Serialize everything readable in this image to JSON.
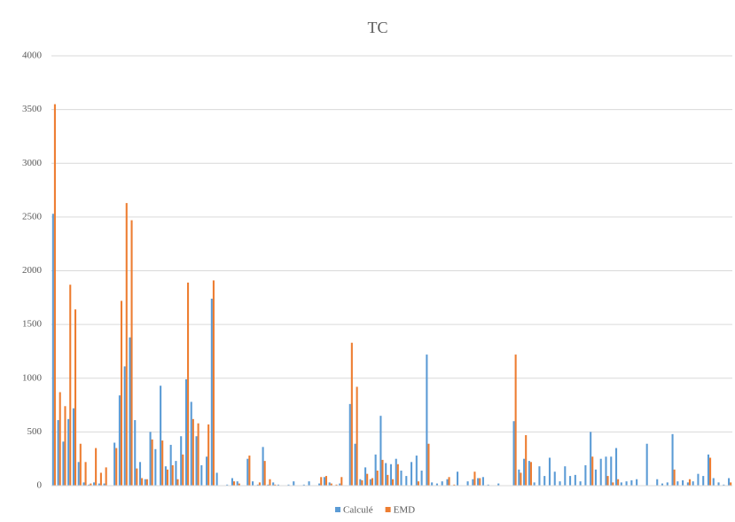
{
  "chart_data": {
    "type": "bar",
    "title": "TC",
    "categories": [
      null,
      null,
      null,
      null,
      null,
      null,
      null,
      null,
      null,
      null,
      null,
      null,
      null,
      null,
      null,
      null,
      null,
      null,
      null,
      null,
      null,
      null,
      null,
      null,
      null,
      null,
      null,
      null,
      null,
      null,
      null,
      null,
      null,
      null,
      null,
      null,
      null,
      null,
      null,
      null,
      null,
      null,
      null,
      null,
      null,
      null,
      null,
      null,
      null,
      null,
      null,
      null,
      null,
      null,
      null,
      null,
      null,
      null,
      null,
      null,
      null,
      null,
      null,
      null,
      null,
      null,
      null,
      null,
      null,
      null,
      null,
      null,
      null,
      null,
      null,
      null,
      null,
      null,
      null,
      null,
      null,
      null,
      null,
      null,
      null,
      null,
      null,
      null,
      null,
      null,
      null,
      null,
      null,
      null,
      null,
      null,
      null,
      null,
      null,
      null,
      null,
      null,
      null,
      null,
      null,
      null,
      null,
      null,
      null,
      null,
      null,
      null,
      null,
      null,
      null,
      null,
      null,
      null,
      null,
      null,
      null,
      null,
      null,
      null,
      null,
      null,
      null,
      null,
      null,
      null,
      null,
      null,
      null
    ],
    "series": [
      {
        "name": "Calculé",
        "color": "#5b9bd5",
        "values": [
          2530,
          610,
          410,
          620,
          720,
          220,
          30,
          10,
          30,
          20,
          20,
          0,
          400,
          840,
          1110,
          1380,
          610,
          220,
          60,
          500,
          340,
          930,
          180,
          380,
          230,
          460,
          990,
          780,
          460,
          190,
          270,
          1740,
          120,
          0,
          10,
          70,
          40,
          0,
          250,
          40,
          10,
          360,
          10,
          30,
          10,
          0,
          10,
          40,
          0,
          10,
          40,
          0,
          20,
          80,
          30,
          0,
          20,
          0,
          760,
          390,
          60,
          170,
          60,
          290,
          650,
          210,
          200,
          250,
          140,
          90,
          220,
          280,
          140,
          1220,
          30,
          20,
          40,
          60,
          0,
          130,
          0,
          40,
          60,
          70,
          80,
          10,
          0,
          20,
          0,
          0,
          600,
          150,
          250,
          230,
          30,
          180,
          90,
          260,
          130,
          40,
          180,
          90,
          100,
          40,
          190,
          500,
          150,
          250,
          270,
          270,
          350,
          30,
          40,
          50,
          60,
          0,
          390,
          0,
          60,
          20,
          30,
          480,
          40,
          50,
          30,
          40,
          110,
          90,
          290,
          70,
          30,
          10,
          70
        ]
      },
      {
        "name": "EMD",
        "color": "#ed7d31",
        "values": [
          3550,
          870,
          740,
          1870,
          1640,
          390,
          220,
          20,
          350,
          120,
          170,
          0,
          350,
          1720,
          2630,
          2470,
          160,
          70,
          60,
          430,
          0,
          420,
          150,
          190,
          60,
          290,
          1890,
          620,
          580,
          0,
          570,
          1910,
          0,
          0,
          0,
          40,
          20,
          0,
          280,
          0,
          30,
          230,
          60,
          10,
          0,
          0,
          0,
          0,
          0,
          0,
          0,
          0,
          80,
          90,
          20,
          10,
          80,
          0,
          1330,
          920,
          50,
          110,
          70,
          140,
          240,
          100,
          60,
          200,
          0,
          0,
          0,
          40,
          0,
          390,
          0,
          0,
          0,
          80,
          10,
          0,
          0,
          0,
          130,
          70,
          0,
          0,
          0,
          0,
          0,
          0,
          1220,
          120,
          470,
          220,
          0,
          0,
          0,
          0,
          0,
          0,
          0,
          0,
          0,
          0,
          0,
          270,
          0,
          0,
          90,
          30,
          60,
          0,
          0,
          0,
          0,
          0,
          0,
          0,
          0,
          0,
          0,
          150,
          0,
          0,
          60,
          0,
          0,
          0,
          260,
          0,
          0,
          0,
          30
        ]
      }
    ],
    "ylim": [
      0,
      4000
    ],
    "yticks": [
      0,
      500,
      1000,
      1500,
      2000,
      2500,
      3000,
      3500,
      4000
    ],
    "grid": true,
    "legend": "bottom"
  }
}
